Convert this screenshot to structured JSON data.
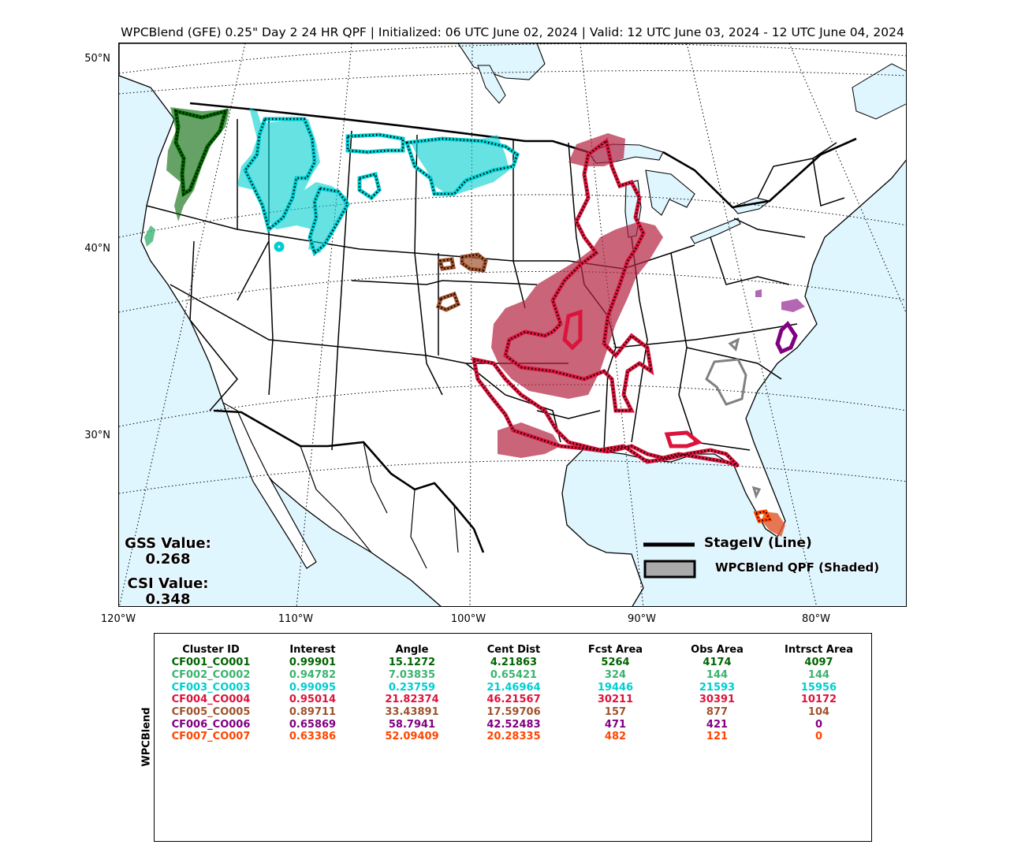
{
  "title": "WPCBlend (GFE) 0.25\" Day 2 24 HR QPF | Initialized: 06 UTC June 02, 2024 | Valid: 12 UTC June 03, 2024 - 12 UTC June 04, 2024",
  "map": {
    "lat_labels": [
      "50°N",
      "40°N",
      "30°N"
    ],
    "lon_labels": [
      "120°W",
      "110°W",
      "100°W",
      "90°W",
      "80°W"
    ],
    "ocean_color": "#dff6ff",
    "land_color": "#ffffff",
    "clusters": [
      {
        "id": "CF001",
        "color": "#006400"
      },
      {
        "id": "CF002",
        "color": "#3cb371"
      },
      {
        "id": "CF003",
        "color": "#00ced1"
      },
      {
        "id": "CF004",
        "color": "#dc143c"
      },
      {
        "id": "CF005",
        "color": "#a0522d"
      },
      {
        "id": "CF006",
        "color": "#800080"
      },
      {
        "id": "CF007",
        "color": "#ff4500"
      }
    ],
    "unmatched_obs_color": "#808080"
  },
  "scores": {
    "gss_label": "GSS Value:",
    "gss_value": "0.268",
    "csi_label": "CSI Value:",
    "csi_value": "0.348"
  },
  "legend": {
    "line_label": "StageIV (Line)",
    "shaded_label": "WPCBlend QPF (Shaded)"
  },
  "table": {
    "side_label": "WPCBlend",
    "headers": [
      "Cluster ID",
      "Interest",
      "Angle",
      "Cent Dist",
      "Fcst Area",
      "Obs Area",
      "Intrsct Area"
    ],
    "rows": [
      {
        "color": "#006400",
        "cells": [
          "CF001_CO001",
          "0.99901",
          "15.1272",
          "4.21863",
          "5264",
          "4174",
          "4097"
        ]
      },
      {
        "color": "#3cb371",
        "cells": [
          "CF002_CO002",
          "0.94782",
          "7.03835",
          "0.65421",
          "324",
          "144",
          "144"
        ]
      },
      {
        "color": "#00ced1",
        "cells": [
          "CF003_CO003",
          "0.99095",
          "0.23759",
          "21.46964",
          "19446",
          "21593",
          "15956"
        ]
      },
      {
        "color": "#dc143c",
        "cells": [
          "CF004_CO004",
          "0.95014",
          "21.82374",
          "46.21567",
          "30211",
          "30391",
          "10172"
        ]
      },
      {
        "color": "#a0522d",
        "cells": [
          "CF005_CO005",
          "0.89711",
          "33.43891",
          "17.59706",
          "157",
          "877",
          "104"
        ]
      },
      {
        "color": "#800080",
        "cells": [
          "CF006_CO006",
          "0.65869",
          "58.7941",
          "42.52483",
          "471",
          "421",
          "0"
        ]
      },
      {
        "color": "#ff4500",
        "cells": [
          "CF007_CO007",
          "0.63386",
          "52.09409",
          "20.28335",
          "482",
          "121",
          "0"
        ]
      }
    ]
  }
}
